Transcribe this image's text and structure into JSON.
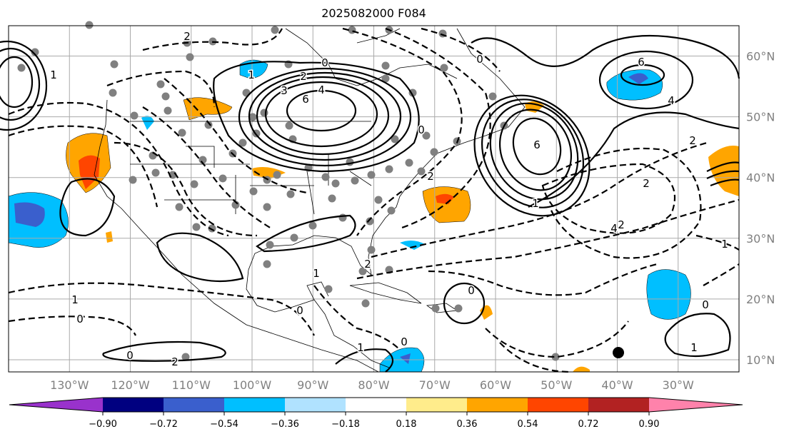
{
  "title": "2025082000 F084",
  "map": {
    "lon_labels": [
      "130°W",
      "120°W",
      "110°W",
      "100°W",
      "90°W",
      "80°W",
      "70°W",
      "60°W",
      "50°W",
      "40°W",
      "30°W"
    ],
    "lat_labels": [
      "60°N",
      "50°N",
      "40°N",
      "30°N",
      "20°N",
      "10°N"
    ],
    "extent": {
      "lon": [
        -140,
        -20
      ],
      "lat": [
        8,
        65
      ]
    },
    "contour_labels": [
      "2",
      "1",
      "0",
      "2",
      "3",
      "4",
      "6",
      "0",
      "2",
      "2",
      "1",
      "0",
      "6",
      "4",
      "2",
      "6",
      "4",
      "2",
      "1",
      "2",
      "0",
      "1",
      "0",
      "1",
      "0",
      "1",
      "2",
      "0",
      "0",
      "1",
      "0",
      "1"
    ]
  },
  "colorbar": {
    "ticks": [
      "−0.90",
      "−0.72",
      "−0.54",
      "−0.36",
      "−0.18",
      "0.18",
      "0.36",
      "0.54",
      "0.72",
      "0.90"
    ],
    "colors": [
      "#9932cc",
      "#000080",
      "#3a5fcd",
      "#00bfff",
      "#b0e2ff",
      "#ffffff",
      "#ffec8b",
      "#ffa500",
      "#ff4500",
      "#b22222",
      "#ff82ab"
    ]
  }
}
